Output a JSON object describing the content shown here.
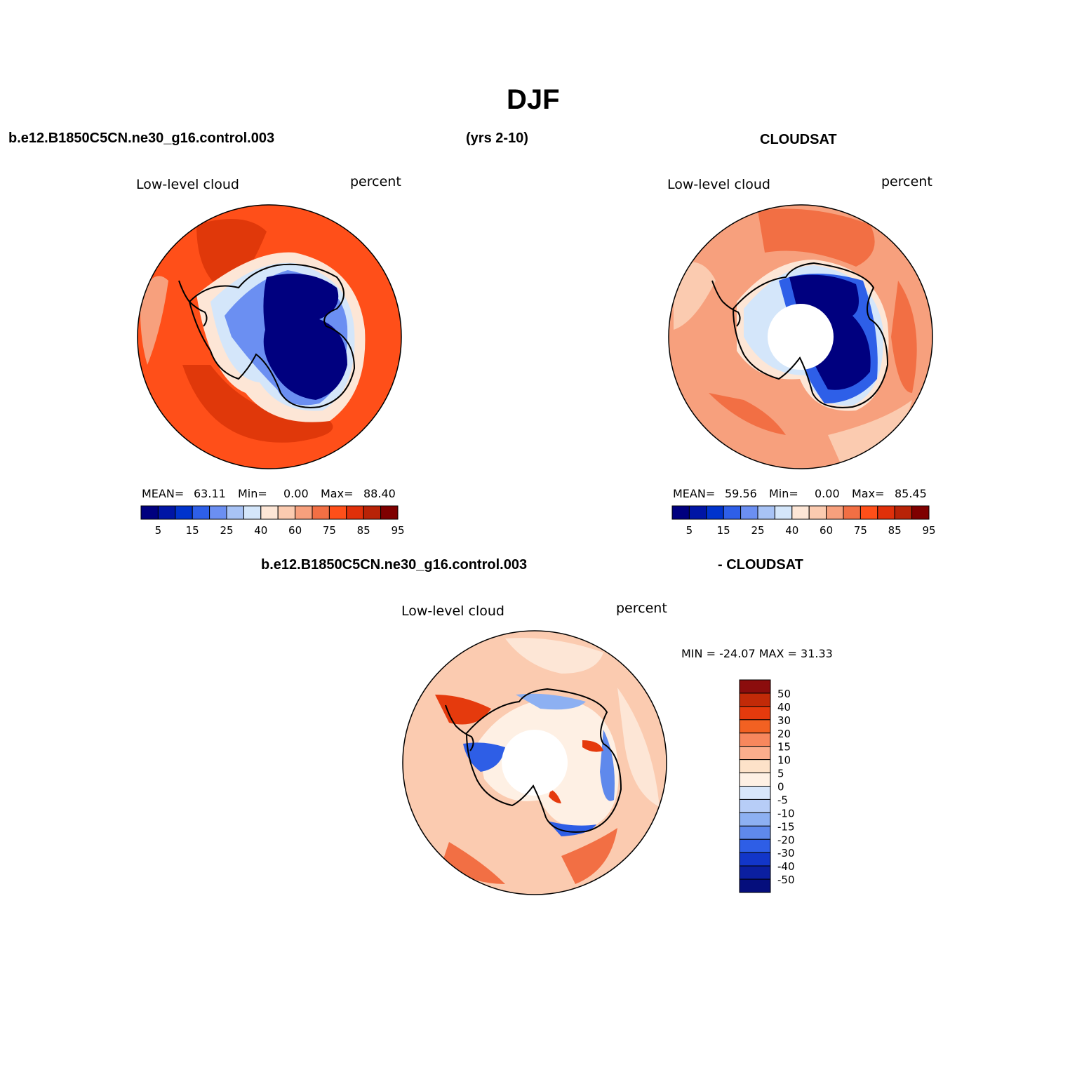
{
  "title": "DJF",
  "header": {
    "left": "b.e12.B1850C5CN.ne30_g16.control.003",
    "center": "(yrs 2-10)",
    "right": "CLOUDSAT"
  },
  "panels": [
    {
      "id": "model",
      "var_label": "Low-level cloud",
      "units": "percent",
      "mean_label": "MEAN=",
      "mean": "63.11",
      "min_label": "Min=",
      "min": "0.00",
      "max_label": "Max=",
      "max": "88.40"
    },
    {
      "id": "obs",
      "var_label": "Low-level cloud",
      "units": "percent",
      "mean_label": "MEAN=",
      "mean": "59.56",
      "min_label": "Min=",
      "min": "0.00",
      "max_label": "Max=",
      "max": "85.45"
    }
  ],
  "diff": {
    "header_left": "b.e12.B1850C5CN.ne30_g16.control.003",
    "header_right": "- CLOUDSAT",
    "var_label": "Low-level cloud",
    "units": "percent",
    "minmax": "MIN = -24.07 MAX =  31.33"
  },
  "abs_colorbar": {
    "colors": [
      "#00007f",
      "#0015a5",
      "#0033cc",
      "#2e5fe8",
      "#6b8ff2",
      "#a8c3f5",
      "#d4e6fa",
      "#fde6d6",
      "#fbcbb0",
      "#f7a07d",
      "#f26f44",
      "#ff4f19",
      "#e0300a",
      "#b82307",
      "#7f0000"
    ],
    "tick_labels": [
      "5",
      "15",
      "25",
      "40",
      "60",
      "75",
      "85",
      "95"
    ]
  },
  "diff_colorbar": {
    "colors_top_to_bottom": [
      "#8b0d0d",
      "#c22a08",
      "#e53a0d",
      "#f26122",
      "#f7875d",
      "#fbad8c",
      "#fde2c9",
      "#fef0e4",
      "#d8e6fa",
      "#b7cdf7",
      "#8db0f2",
      "#5f89ec",
      "#2e5ee6",
      "#1236c9",
      "#0b1fa0",
      "#050e7c"
    ],
    "tick_labels": [
      "50",
      "40",
      "30",
      "20",
      "15",
      "10",
      "5",
      "0",
      "-5",
      "-10",
      "-15",
      "-20",
      "-30",
      "-40",
      "-50"
    ]
  },
  "map_colors": {
    "model_outer": "#ff4f19",
    "model_storm": "#e0380a",
    "model_coast": "#f7a07d",
    "obs_outer": "#f7a07d",
    "obs_mid": "#f26f44",
    "ice_low": "#00007f",
    "ice_mid": "#2e5fe8",
    "ice_edge": "#a8c3f5",
    "diff_bg": "#fbcbb0",
    "diff_pos": "#f26f44",
    "diff_neg": "#5f89ec"
  }
}
